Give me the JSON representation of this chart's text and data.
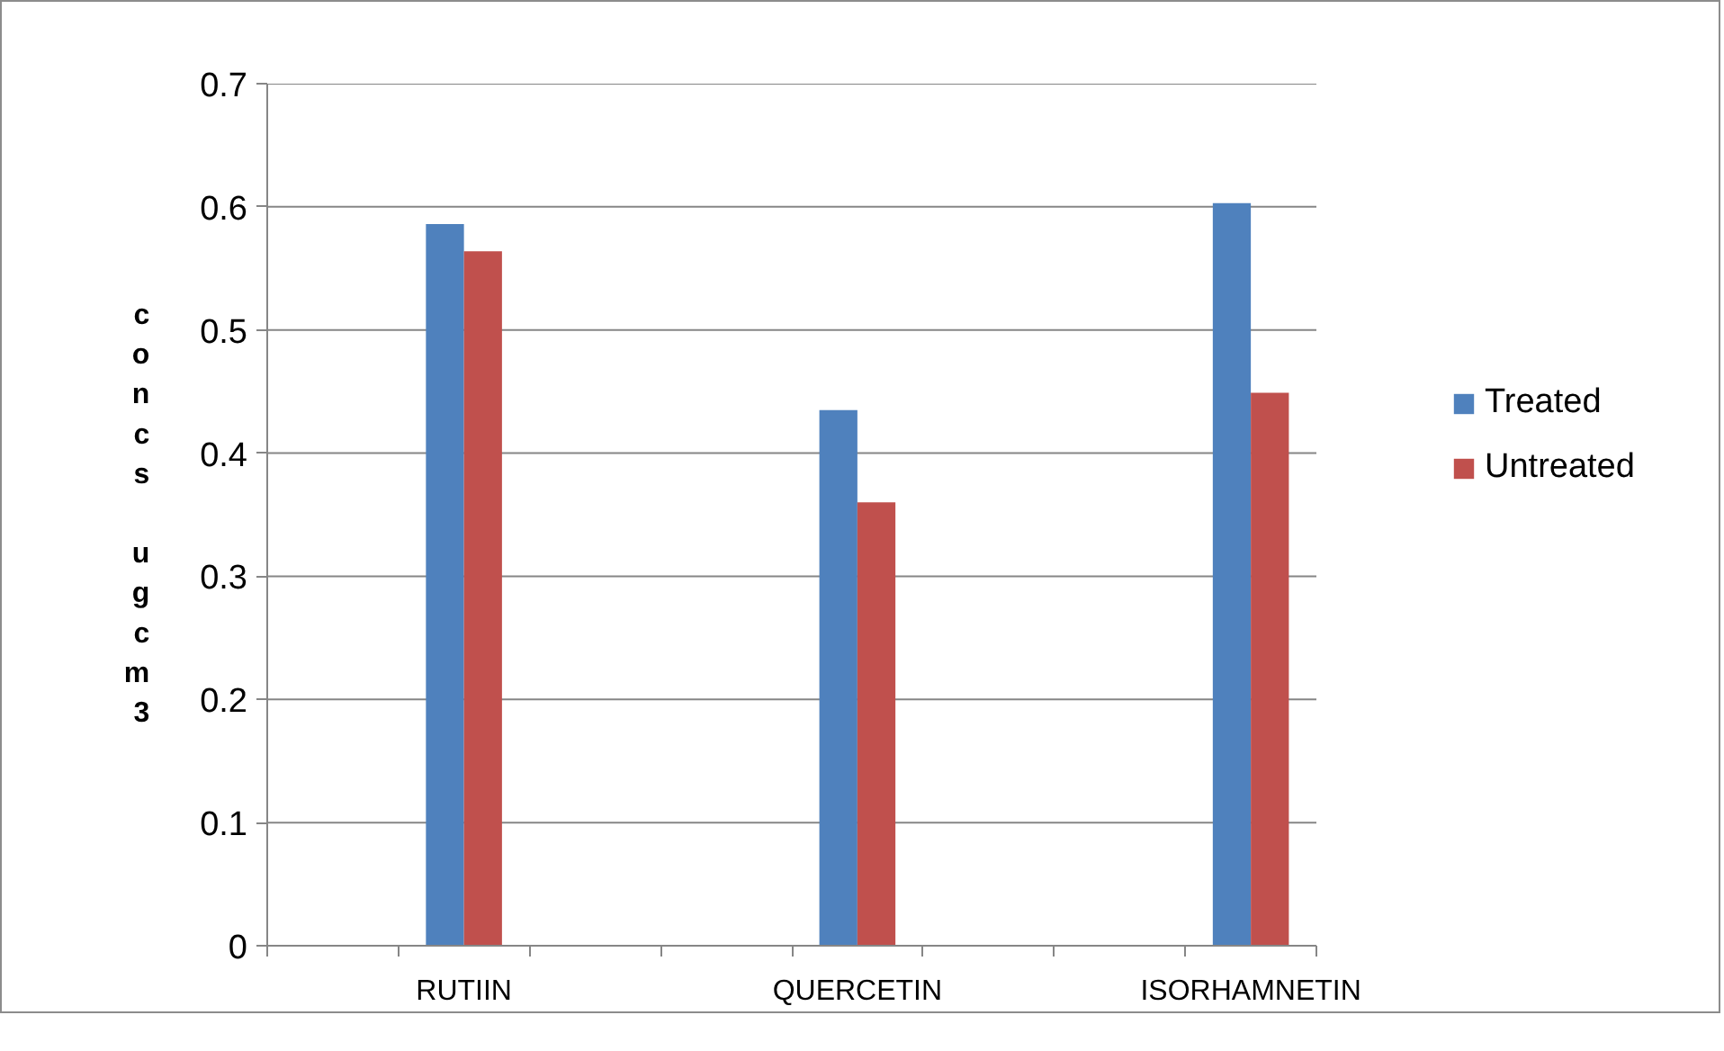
{
  "chart_data": {
    "type": "bar",
    "ylabel": "concs ugcm3",
    "categories": [
      null,
      "RUTIIN",
      null,
      null,
      "QUERCETIN",
      null,
      null,
      "ISORHAMNETIN"
    ],
    "series": [
      {
        "name": "Treated",
        "color": "#4f81bd",
        "values": [
          null,
          0.586,
          null,
          null,
          0.435,
          null,
          null,
          0.603
        ]
      },
      {
        "name": "Untreated",
        "color": "#c0504d",
        "values": [
          null,
          0.564,
          null,
          null,
          0.36,
          null,
          null,
          0.449
        ]
      }
    ],
    "ylim": [
      0,
      0.7
    ],
    "yticks": [
      0,
      0.1,
      0.2,
      0.3,
      0.4,
      0.5,
      0.6,
      0.7
    ],
    "grid": "y",
    "legend": "right"
  }
}
